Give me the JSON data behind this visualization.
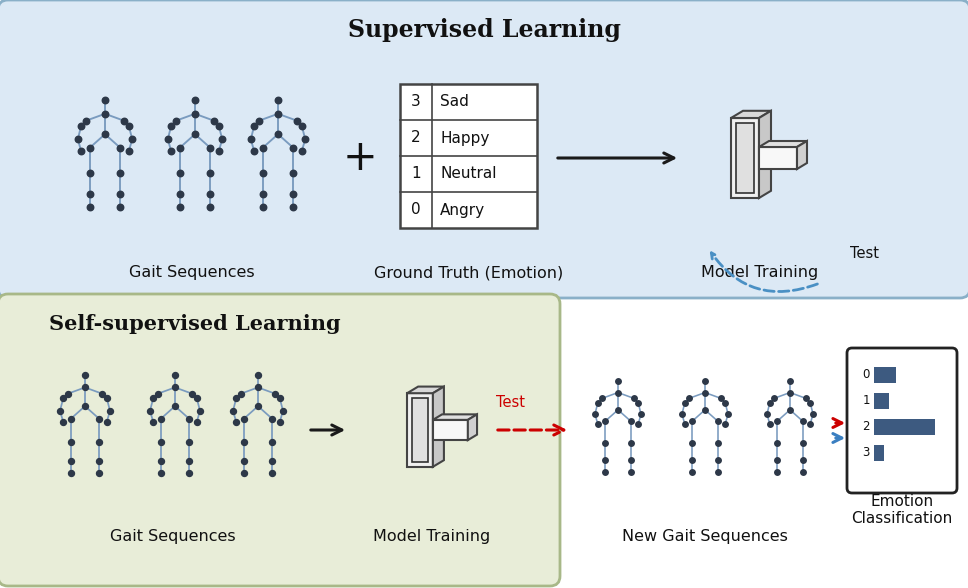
{
  "bg_color": "#ffffff",
  "top_box_color": "#dce9f5",
  "bottom_box_color": "#e8edd8",
  "supervised_title": "Supervised Learning",
  "selfsupervised_title": "Self-supervised Learning",
  "skeleton_color": "#7a9bbf",
  "skeleton_node_color": "#2d3848",
  "table_emotions": [
    "Angry",
    "Neutral",
    "Happy",
    "Sad"
  ],
  "table_indices": [
    "0",
    "1",
    "2",
    "3"
  ],
  "gait_label_top": "Gait Sequences",
  "gt_label": "Ground Truth (Emotion)",
  "model_label_top": "Model Training",
  "gait_label_bottom": "Gait Sequences",
  "model_label_bottom": "Model Training",
  "new_gait_label": "New Gait Sequences",
  "emotion_label": "Emotion\nClassification",
  "test_label": "Test",
  "bar_color": "#3d5a80",
  "bar_values": [
    0.32,
    0.22,
    0.9,
    0.14
  ],
  "plus_symbol": "+",
  "arrow_color_black": "#1a1a1a",
  "arrow_color_red": "#cc0000",
  "arrow_color_blue": "#3a7fc1",
  "dashed_arrow_color": "#4a90c4"
}
